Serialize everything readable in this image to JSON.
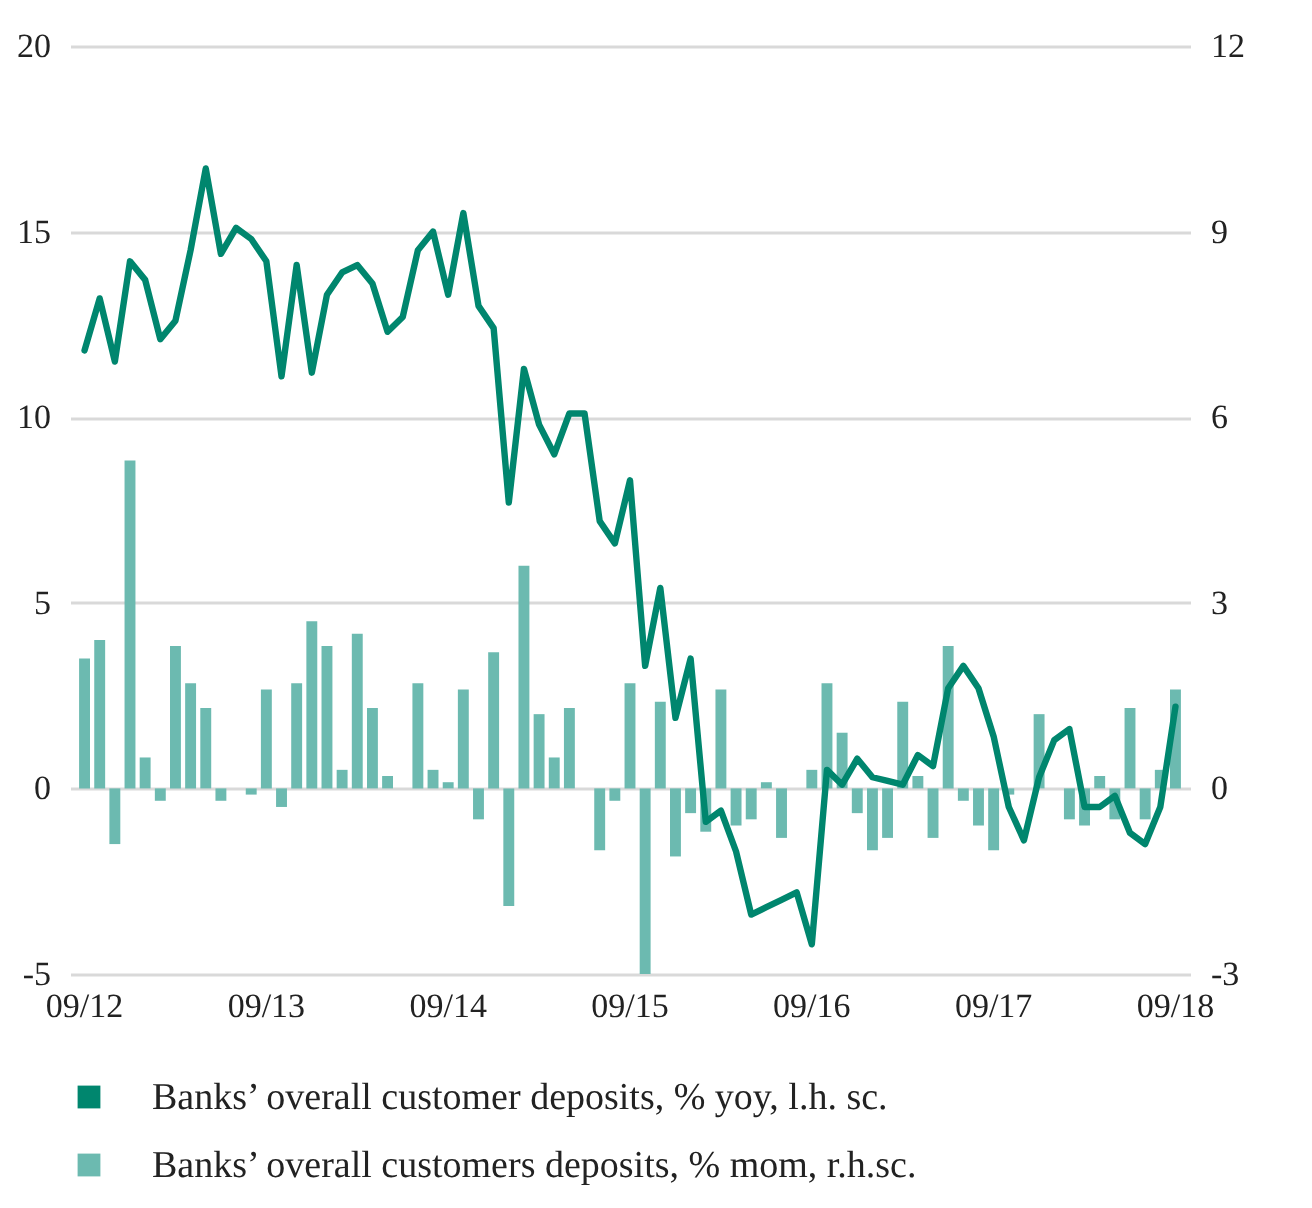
{
  "chart_data": {
    "type": "line",
    "categories": [
      "09/12",
      null,
      null,
      null,
      null,
      null,
      null,
      null,
      null,
      null,
      null,
      null,
      "09/13",
      null,
      null,
      null,
      null,
      null,
      null,
      null,
      null,
      null,
      null,
      null,
      "09/14",
      null,
      null,
      null,
      null,
      null,
      null,
      null,
      null,
      null,
      null,
      null,
      "09/15",
      null,
      null,
      null,
      null,
      null,
      null,
      null,
      null,
      null,
      null,
      null,
      "09/16",
      null,
      null,
      null,
      null,
      null,
      null,
      null,
      null,
      null,
      null,
      null,
      "09/17",
      null,
      null,
      null,
      null,
      null,
      null,
      null,
      null,
      null,
      null,
      null,
      "09/18"
    ],
    "series": [
      {
        "name": "Banks’ overall customer deposits, % yoy, l.h. sc.",
        "color": "#00866e",
        "values": [
          11.8,
          13.2,
          11.5,
          14.2,
          13.7,
          12.1,
          12.6,
          14.5,
          16.7,
          14.4,
          15.1,
          14.8,
          14.2,
          11.1,
          14.1,
          11.2,
          13.3,
          13.9,
          14.1,
          13.6,
          12.3,
          12.7,
          14.5,
          15.0,
          13.3,
          15.5,
          13.0,
          12.4,
          7.7,
          11.3,
          9.8,
          9.0,
          10.1,
          10.1,
          7.2,
          6.6,
          8.3,
          3.3,
          5.4,
          1.9,
          3.5,
          -0.9,
          -0.6,
          -1.7,
          -3.4,
          -3.2,
          -3.0,
          -2.8,
          -4.2,
          0.5,
          0.1,
          0.8,
          0.3,
          0.2,
          0.1,
          0.9,
          0.6,
          2.7,
          3.3,
          2.7,
          1.4,
          -0.5,
          -1.4,
          0.3,
          1.3,
          1.6,
          -0.5,
          -0.5,
          -0.2,
          -1.2,
          -1.5,
          -0.5,
          2.2
        ]
      },
      {
        "name": "Banks’ overall customers deposits, % mom, r.h.sc.",
        "type": "bar",
        "axis": "y2",
        "color": "#6cbab0",
        "values": [
          2.1,
          2.4,
          -0.9,
          5.3,
          0.5,
          -0.2,
          2.3,
          1.7,
          1.3,
          -0.2,
          0,
          -0.1,
          1.6,
          -0.3,
          1.7,
          2.7,
          2.3,
          0.3,
          2.5,
          1.3,
          0.2,
          0,
          1.7,
          0.3,
          0.1,
          1.6,
          -0.5,
          2.2,
          -1.9,
          3.6,
          1.2,
          0.5,
          1.3,
          0,
          -1.0,
          -0.2,
          1.7,
          -3.0,
          1.4,
          -1.1,
          -0.4,
          -0.7,
          1.6,
          -0.6,
          -0.5,
          0.1,
          -0.8,
          0,
          0.3,
          1.7,
          0.9,
          -0.4,
          -1.0,
          -0.8,
          1.4,
          0.2,
          -0.8,
          2.3,
          -0.2,
          -0.6,
          -1.0,
          -0.1,
          0,
          1.2,
          0,
          -0.5,
          -0.6,
          0.2,
          -0.5,
          1.3,
          -0.5,
          0.3,
          1.6
        ]
      }
    ],
    "ylim": [
      -5,
      20
    ],
    "yticks": [
      -5,
      0,
      5,
      10,
      15,
      20
    ],
    "y2lim": [
      -3,
      12
    ],
    "y2ticks": [
      -3,
      0,
      3,
      6,
      9,
      12
    ],
    "grid": "y",
    "legend": "bottom"
  }
}
